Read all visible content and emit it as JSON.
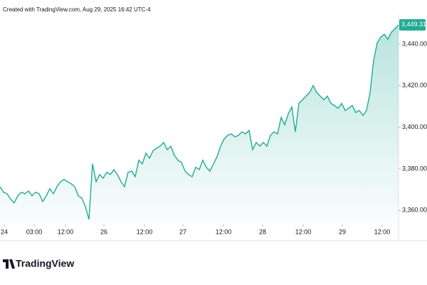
{
  "header": "Created with TradingView.com, Aug 29, 2025 16:42 UTC-4",
  "brand": "TradingView",
  "chart_data": {
    "type": "area",
    "color": "#22ab94",
    "price_label": "3,449.315",
    "values": [
      3371.4,
      3368.7,
      3368.0,
      3365.3,
      3363.6,
      3367.0,
      3368.7,
      3368.0,
      3369.3,
      3367.0,
      3368.7,
      3368.0,
      3364.2,
      3367.0,
      3370.4,
      3368.0,
      3371.4,
      3373.8,
      3374.8,
      3373.8,
      3372.8,
      3371.4,
      3367.0,
      3365.9,
      3361.8,
      3355.6,
      3382.4,
      3373.8,
      3377.2,
      3375.5,
      3378.3,
      3377.2,
      3379.6,
      3377.2,
      3373.8,
      3371.4,
      3378.3,
      3378.9,
      3376.2,
      3384.1,
      3382.4,
      3387.5,
      3385.1,
      3388.6,
      3389.9,
      3390.9,
      3392.7,
      3389.2,
      3390.9,
      3386.5,
      3384.1,
      3383.1,
      3378.9,
      3377.2,
      3376.2,
      3380.7,
      3379.6,
      3384.1,
      3380.7,
      3378.9,
      3382.4,
      3385.8,
      3390.9,
      3394.4,
      3396.1,
      3396.8,
      3395.4,
      3396.1,
      3397.8,
      3396.8,
      3398.5,
      3389.2,
      3392.7,
      3390.9,
      3392.7,
      3390.9,
      3396.1,
      3397.8,
      3396.8,
      3404.7,
      3401.2,
      3406.4,
      3409.8,
      3397.8,
      3411.5,
      3413.2,
      3415.0,
      3416.7,
      3420.1,
      3416.7,
      3415.0,
      3413.2,
      3415.0,
      3411.5,
      3410.5,
      3409.1,
      3411.5,
      3408.1,
      3409.1,
      3410.5,
      3407.1,
      3408.1,
      3405.7,
      3408.1,
      3416.7,
      3432.1,
      3440.7,
      3443.4,
      3444.8,
      3442.4,
      3445.8,
      3447.5,
      3449.315
    ],
    "xlim": [
      0,
      112
    ],
    "xticks": [
      {
        "value": 1.2,
        "label": "24"
      },
      {
        "value": 9.6,
        "label": "03:00"
      },
      {
        "value": 18.4,
        "label": "12:00"
      },
      {
        "value": 29.2,
        "label": "26"
      },
      {
        "value": 40.6,
        "label": "12:00"
      },
      {
        "value": 51.4,
        "label": "27"
      },
      {
        "value": 62.8,
        "label": "12:00"
      },
      {
        "value": 73.8,
        "label": "28"
      },
      {
        "value": 85.2,
        "label": "12:00"
      },
      {
        "value": 96.2,
        "label": "29"
      },
      {
        "value": 107.4,
        "label": "12:00"
      }
    ],
    "ylim": [
      3353.2,
      3455.1
    ],
    "yticks": [
      {
        "value": 3360,
        "label": "3,360.000"
      },
      {
        "value": 3380,
        "label": "3,380.000"
      },
      {
        "value": 3400,
        "label": "3,400.000"
      },
      {
        "value": 3420,
        "label": "3,420.000"
      },
      {
        "value": 3440,
        "label": "3,440.000"
      }
    ]
  }
}
